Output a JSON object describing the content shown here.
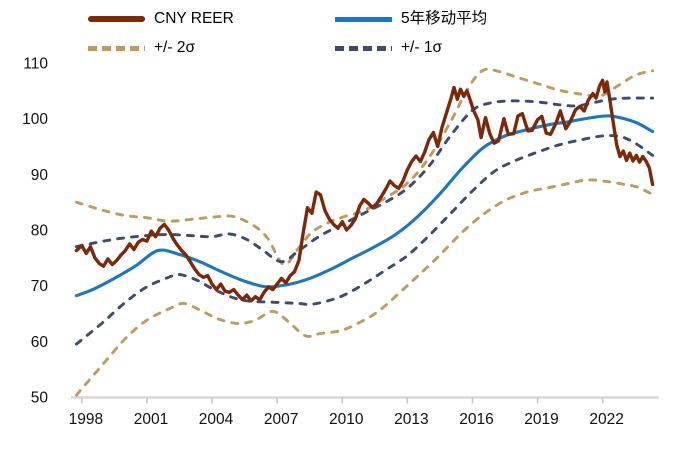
{
  "chart_data": {
    "type": "line",
    "title": "",
    "xlabel": "",
    "ylabel": "",
    "xlim": [
      1997.5,
      2024.6
    ],
    "ylim": [
      50,
      110
    ],
    "yticks": [
      50,
      60,
      70,
      80,
      90,
      100,
      110
    ],
    "xticks": [
      1998,
      2001,
      2004,
      2007,
      2010,
      2013,
      2016,
      2019,
      2022
    ],
    "grid": false,
    "legend_position": "top",
    "axis_color": "#d8d8d8",
    "tick_label_color": "#111111",
    "series": [
      {
        "name": "CNY REER",
        "color": "#7E2807",
        "style": "solid",
        "width": 3.4,
        "smooth": false,
        "points": [
          [
            1997.75,
            76.3
          ],
          [
            1998,
            77.2
          ],
          [
            1998.2,
            75.8
          ],
          [
            1998.4,
            77
          ],
          [
            1998.6,
            75
          ],
          [
            1998.8,
            74
          ],
          [
            1999,
            73.5
          ],
          [
            1999.2,
            74.8
          ],
          [
            1999.4,
            73.8
          ],
          [
            1999.6,
            74.5
          ],
          [
            1999.8,
            75.5
          ],
          [
            2000,
            76.3
          ],
          [
            2000.2,
            77.5
          ],
          [
            2000.4,
            76.5
          ],
          [
            2000.6,
            77.8
          ],
          [
            2000.8,
            78.3
          ],
          [
            2001,
            78
          ],
          [
            2001.2,
            79.8
          ],
          [
            2001.4,
            78.8
          ],
          [
            2001.6,
            80.3
          ],
          [
            2001.8,
            81
          ],
          [
            2002,
            80
          ],
          [
            2002.2,
            78.5
          ],
          [
            2002.4,
            77.3
          ],
          [
            2002.6,
            76.3
          ],
          [
            2002.8,
            75.5
          ],
          [
            2003,
            74.3
          ],
          [
            2003.2,
            73
          ],
          [
            2003.4,
            72
          ],
          [
            2003.6,
            71.5
          ],
          [
            2003.8,
            71.8
          ],
          [
            2004,
            70.3
          ],
          [
            2004.2,
            69.3
          ],
          [
            2004.4,
            70.3
          ],
          [
            2004.6,
            69
          ],
          [
            2004.8,
            68.8
          ],
          [
            2005,
            69.3
          ],
          [
            2005.2,
            68.3
          ],
          [
            2005.4,
            67.5
          ],
          [
            2005.6,
            68.3
          ],
          [
            2005.8,
            67.3
          ],
          [
            2006,
            68
          ],
          [
            2006.2,
            67.5
          ],
          [
            2006.4,
            68.8
          ],
          [
            2006.6,
            69.8
          ],
          [
            2006.8,
            69.3
          ],
          [
            2007,
            70.3
          ],
          [
            2007.2,
            71.3
          ],
          [
            2007.4,
            70.5
          ],
          [
            2007.6,
            71.8
          ],
          [
            2007.8,
            72.5
          ],
          [
            2008,
            74.5
          ],
          [
            2008.2,
            79.5
          ],
          [
            2008.4,
            84
          ],
          [
            2008.6,
            83
          ],
          [
            2008.8,
            86.8
          ],
          [
            2009,
            86.3
          ],
          [
            2009.2,
            83.5
          ],
          [
            2009.4,
            82
          ],
          [
            2009.6,
            81
          ],
          [
            2009.8,
            80.3
          ],
          [
            2010,
            81.5
          ],
          [
            2010.2,
            80
          ],
          [
            2010.4,
            80.8
          ],
          [
            2010.6,
            82
          ],
          [
            2010.8,
            84.3
          ],
          [
            2011,
            85.5
          ],
          [
            2011.2,
            84.8
          ],
          [
            2011.4,
            84
          ],
          [
            2011.6,
            84.8
          ],
          [
            2011.8,
            86
          ],
          [
            2012,
            87.3
          ],
          [
            2012.2,
            88.8
          ],
          [
            2012.4,
            88
          ],
          [
            2012.6,
            87.5
          ],
          [
            2012.8,
            88.8
          ],
          [
            2013,
            90.8
          ],
          [
            2013.2,
            92.3
          ],
          [
            2013.4,
            93.3
          ],
          [
            2013.6,
            92.3
          ],
          [
            2013.8,
            94
          ],
          [
            2014,
            96.3
          ],
          [
            2014.2,
            97.5
          ],
          [
            2014.4,
            95
          ],
          [
            2014.6,
            98.5
          ],
          [
            2014.8,
            101
          ],
          [
            2015,
            103.5
          ],
          [
            2015.15,
            105.6
          ],
          [
            2015.3,
            103.5
          ],
          [
            2015.45,
            105.3
          ],
          [
            2015.6,
            104
          ],
          [
            2015.75,
            105
          ],
          [
            2015.9,
            103.3
          ],
          [
            2016.05,
            101.5
          ],
          [
            2016.25,
            99.8
          ],
          [
            2016.4,
            96.6
          ],
          [
            2016.6,
            100.2
          ],
          [
            2016.8,
            97.3
          ],
          [
            2017,
            95.6
          ],
          [
            2017.2,
            96
          ],
          [
            2017.45,
            100
          ],
          [
            2017.65,
            97.2
          ],
          [
            2017.9,
            97.3
          ],
          [
            2018.1,
            100.5
          ],
          [
            2018.3,
            100.9
          ],
          [
            2018.55,
            97.8
          ],
          [
            2018.75,
            97.9
          ],
          [
            2019,
            99.8
          ],
          [
            2019.2,
            100.4
          ],
          [
            2019.4,
            97.4
          ],
          [
            2019.6,
            97.2
          ],
          [
            2019.85,
            99.2
          ],
          [
            2020.05,
            101.4
          ],
          [
            2020.3,
            98.2
          ],
          [
            2020.5,
            99.4
          ],
          [
            2020.75,
            101.6
          ],
          [
            2020.95,
            102.2
          ],
          [
            2021.15,
            101.4
          ],
          [
            2021.35,
            103.4
          ],
          [
            2021.55,
            104.5
          ],
          [
            2021.7,
            103.7
          ],
          [
            2021.85,
            105.8
          ],
          [
            2022,
            106.9
          ],
          [
            2022.1,
            104.8
          ],
          [
            2022.2,
            106.6
          ],
          [
            2022.35,
            103
          ],
          [
            2022.5,
            99
          ],
          [
            2022.65,
            95.2
          ],
          [
            2022.8,
            93.2
          ],
          [
            2022.95,
            94.2
          ],
          [
            2023.1,
            92.5
          ],
          [
            2023.25,
            93.8
          ],
          [
            2023.4,
            92.4
          ],
          [
            2023.55,
            93.4
          ],
          [
            2023.7,
            92.2
          ],
          [
            2023.85,
            93.2
          ],
          [
            2024,
            92.4
          ],
          [
            2024.15,
            91.2
          ],
          [
            2024.3,
            88.2
          ]
        ]
      },
      {
        "name": "5年移动平均",
        "color": "#1B78BE",
        "style": "solid",
        "width": 3.1,
        "smooth": true,
        "points": [
          [
            1997.75,
            68.2
          ],
          [
            1998.5,
            69.3
          ],
          [
            1999.5,
            71.3
          ],
          [
            2000.5,
            73.6
          ],
          [
            2001.5,
            76.3
          ],
          [
            2002.5,
            75.6
          ],
          [
            2003.5,
            74.2
          ],
          [
            2004.5,
            72.4
          ],
          [
            2005.5,
            70.8
          ],
          [
            2006.5,
            69.8
          ],
          [
            2007.5,
            70.2
          ],
          [
            2008.5,
            71.3
          ],
          [
            2009.5,
            73
          ],
          [
            2010.5,
            75
          ],
          [
            2011.5,
            77
          ],
          [
            2012.5,
            79.3
          ],
          [
            2013.5,
            82.5
          ],
          [
            2014.5,
            86.5
          ],
          [
            2015.5,
            91
          ],
          [
            2016.5,
            94.8
          ],
          [
            2017.5,
            96.9
          ],
          [
            2018.5,
            98
          ],
          [
            2019.5,
            98.9
          ],
          [
            2020.5,
            99.5
          ],
          [
            2021.5,
            100.2
          ],
          [
            2022.3,
            100.5
          ],
          [
            2023,
            100
          ],
          [
            2023.6,
            99.2
          ],
          [
            2024.3,
            97.7
          ]
        ]
      },
      {
        "name": "+/- 2σ",
        "color": "#C39A58",
        "style": "dashed",
        "width": 2.9,
        "smooth": true,
        "points_upper": [
          [
            1997.75,
            85
          ],
          [
            1999,
            83.5
          ],
          [
            2000,
            82.6
          ],
          [
            2001,
            82.2
          ],
          [
            2002,
            81.6
          ],
          [
            2003,
            81.9
          ],
          [
            2004,
            82.3
          ],
          [
            2005,
            82.4
          ],
          [
            2006,
            80.6
          ],
          [
            2006.6,
            78.3
          ],
          [
            2007.3,
            73.8
          ],
          [
            2008,
            76.8
          ],
          [
            2008.6,
            79.6
          ],
          [
            2009.4,
            81.4
          ],
          [
            2010,
            82.3
          ],
          [
            2011,
            83.5
          ],
          [
            2012,
            85.8
          ],
          [
            2013,
            88.4
          ],
          [
            2014,
            93
          ],
          [
            2015,
            99.5
          ],
          [
            2015.8,
            105.5
          ],
          [
            2016.5,
            108.7
          ],
          [
            2017.2,
            108.5
          ],
          [
            2018,
            107.5
          ],
          [
            2019,
            106.3
          ],
          [
            2020,
            105.1
          ],
          [
            2021,
            104.4
          ],
          [
            2021.9,
            104.1
          ],
          [
            2022.7,
            105.9
          ],
          [
            2023.4,
            107.6
          ],
          [
            2024,
            108.4
          ],
          [
            2024.3,
            108.6
          ]
        ],
        "points_lower": [
          [
            1997.75,
            50.3
          ],
          [
            1998,
            51.5
          ],
          [
            1999,
            56
          ],
          [
            2000,
            60.5
          ],
          [
            2001,
            63.8
          ],
          [
            2002,
            65.8
          ],
          [
            2002.7,
            66.8
          ],
          [
            2003.5,
            65.5
          ],
          [
            2004.3,
            64
          ],
          [
            2005.2,
            63.2
          ],
          [
            2006,
            63.8
          ],
          [
            2006.8,
            65.4
          ],
          [
            2007.5,
            63.6
          ],
          [
            2008.3,
            61
          ],
          [
            2009,
            61.4
          ],
          [
            2010,
            62
          ],
          [
            2011,
            63.8
          ],
          [
            2011.8,
            65.8
          ],
          [
            2012.8,
            69.3
          ],
          [
            2013.5,
            71.8
          ],
          [
            2014.5,
            75.5
          ],
          [
            2015.5,
            79.5
          ],
          [
            2016.5,
            82.8
          ],
          [
            2017.5,
            85.3
          ],
          [
            2018.5,
            86.8
          ],
          [
            2019.5,
            87.6
          ],
          [
            2020.5,
            88.4
          ],
          [
            2021.3,
            89
          ],
          [
            2022.2,
            88.7
          ],
          [
            2023,
            88.2
          ],
          [
            2023.6,
            87.7
          ],
          [
            2024.3,
            86.4
          ]
        ]
      },
      {
        "name": "+/- 1σ",
        "color": "#3E4B6E",
        "style": "dashed",
        "width": 2.9,
        "smooth": true,
        "points_upper": [
          [
            1997.75,
            77
          ],
          [
            1999,
            78
          ],
          [
            2000,
            78.6
          ],
          [
            2001,
            79
          ],
          [
            2002,
            79.2
          ],
          [
            2003,
            79
          ],
          [
            2004,
            78.8
          ],
          [
            2004.8,
            79.3
          ],
          [
            2005.6,
            78.3
          ],
          [
            2006.3,
            76.5
          ],
          [
            2007.2,
            74.3
          ],
          [
            2008,
            76.3
          ],
          [
            2009,
            79
          ],
          [
            2010,
            81
          ],
          [
            2011,
            83
          ],
          [
            2012,
            85
          ],
          [
            2013,
            87.5
          ],
          [
            2014,
            91.5
          ],
          [
            2015,
            97
          ],
          [
            2016,
            101.5
          ],
          [
            2016.8,
            102.8
          ],
          [
            2017.8,
            103.2
          ],
          [
            2019,
            103
          ],
          [
            2020,
            102.5
          ],
          [
            2020.8,
            102.3
          ],
          [
            2021.6,
            102.9
          ],
          [
            2022.4,
            103.5
          ],
          [
            2023.2,
            103.7
          ],
          [
            2024.3,
            103.7
          ]
        ],
        "points_lower": [
          [
            1997.75,
            59.5
          ],
          [
            1998,
            60.3
          ],
          [
            1999,
            63.5
          ],
          [
            2000,
            67
          ],
          [
            2001,
            69.8
          ],
          [
            2002,
            71.5
          ],
          [
            2002.5,
            72
          ],
          [
            2003.3,
            71
          ],
          [
            2004,
            69.5
          ],
          [
            2005,
            67.8
          ],
          [
            2005.8,
            67.2
          ],
          [
            2007,
            67
          ],
          [
            2008,
            66.8
          ],
          [
            2008.7,
            66.7
          ],
          [
            2009.9,
            68
          ],
          [
            2011,
            70.3
          ],
          [
            2012,
            72.8
          ],
          [
            2013,
            75.4
          ],
          [
            2014,
            79
          ],
          [
            2015,
            83
          ],
          [
            2016,
            87
          ],
          [
            2017,
            90.5
          ],
          [
            2018,
            92.5
          ],
          [
            2019,
            94
          ],
          [
            2020,
            95.3
          ],
          [
            2021,
            96.2
          ],
          [
            2022,
            96.9
          ],
          [
            2022.8,
            96.8
          ],
          [
            2023.5,
            95.6
          ],
          [
            2024.3,
            93.4
          ]
        ]
      }
    ]
  }
}
